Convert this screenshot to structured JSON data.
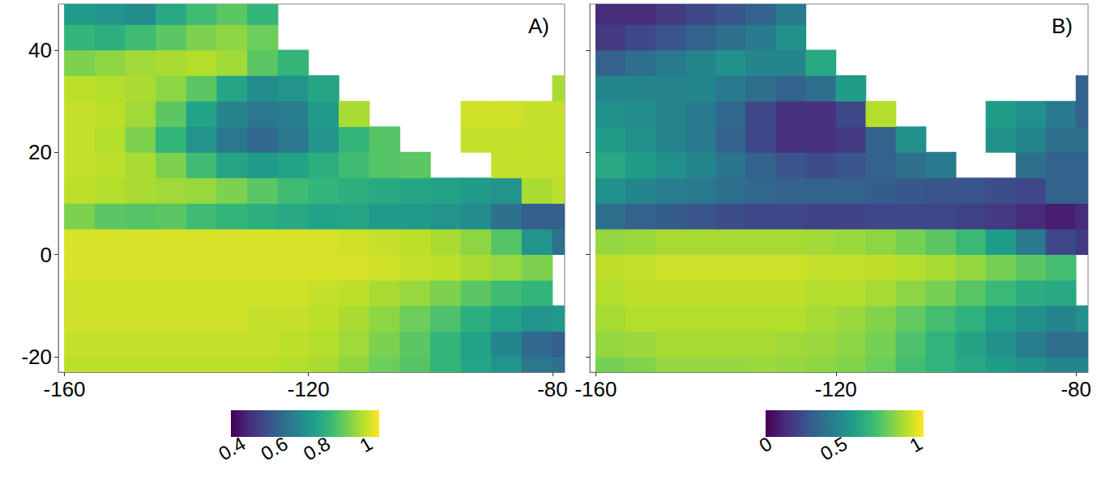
{
  "chart_data": [
    {
      "type": "heatmap",
      "title": "A)",
      "grid": false,
      "x": [
        -157.5,
        -152.5,
        -147.5,
        -142.5,
        -137.5,
        -132.5,
        -127.5,
        -122.5,
        -117.5,
        -112.5,
        -107.5,
        -102.5,
        -97.5,
        -92.5,
        -87.5,
        -82.5,
        -77.5
      ],
      "y": [
        -22.5,
        -17.5,
        -12.5,
        -7.5,
        -2.5,
        2.5,
        7.5,
        12.5,
        17.5,
        22.5,
        27.5,
        32.5,
        37.5,
        42.5,
        47.5
      ],
      "cells": [
        [
          0.97,
          0.97,
          0.97,
          0.97,
          0.97,
          0.97,
          0.97,
          0.96,
          0.95,
          0.92,
          0.88,
          0.85,
          0.8,
          0.75,
          0.7,
          0.62,
          0.6
        ],
        [
          0.98,
          0.98,
          0.98,
          0.98,
          0.98,
          0.98,
          0.98,
          0.97,
          0.96,
          0.94,
          0.9,
          0.86,
          0.8,
          0.74,
          0.66,
          0.58,
          0.55
        ],
        [
          0.99,
          0.99,
          0.99,
          0.99,
          0.99,
          0.99,
          0.98,
          0.98,
          0.97,
          0.95,
          0.92,
          0.88,
          0.84,
          0.78,
          0.74,
          0.7,
          0.72
        ],
        [
          0.99,
          0.99,
          0.99,
          0.99,
          0.99,
          0.99,
          0.99,
          0.99,
          0.98,
          0.97,
          0.95,
          0.93,
          0.9,
          0.86,
          0.82,
          0.8,
          null
        ],
        [
          1,
          1,
          1,
          1,
          1,
          1,
          1,
          1,
          1,
          1,
          0.99,
          0.98,
          0.97,
          0.95,
          0.93,
          0.9,
          null
        ],
        [
          1,
          1,
          1,
          1,
          1,
          1,
          1,
          1,
          1,
          0.99,
          0.98,
          0.97,
          0.95,
          0.92,
          0.85,
          0.7,
          0.6
        ],
        [
          0.9,
          0.86,
          0.85,
          0.86,
          0.82,
          0.8,
          0.78,
          0.76,
          0.74,
          0.75,
          0.72,
          0.72,
          0.7,
          0.68,
          0.6,
          0.55,
          0.55
        ],
        [
          0.97,
          0.96,
          0.95,
          0.94,
          0.93,
          0.9,
          0.86,
          0.82,
          0.8,
          0.78,
          0.76,
          0.75,
          0.74,
          0.72,
          0.7,
          0.95,
          0.97
        ],
        [
          0.98,
          0.97,
          0.95,
          0.9,
          0.82,
          0.75,
          0.72,
          0.74,
          0.78,
          0.82,
          0.85,
          0.86,
          null,
          null,
          0.98,
          0.98,
          0.98
        ],
        [
          0.98,
          0.96,
          0.9,
          0.8,
          0.7,
          0.62,
          0.58,
          0.62,
          0.7,
          0.8,
          0.85,
          null,
          null,
          0.98,
          0.98,
          0.98,
          0.98
        ],
        [
          0.98,
          0.97,
          0.94,
          0.86,
          0.74,
          0.66,
          0.62,
          0.64,
          0.72,
          0.95,
          null,
          null,
          null,
          0.99,
          0.99,
          0.98,
          0.98
        ],
        [
          0.97,
          0.96,
          0.95,
          0.92,
          0.86,
          0.75,
          0.68,
          0.7,
          0.75,
          null,
          null,
          null,
          null,
          null,
          null,
          null,
          0.95
        ],
        [
          0.9,
          0.92,
          0.94,
          0.95,
          0.96,
          0.94,
          0.86,
          0.8,
          null,
          null,
          null,
          null,
          null,
          null,
          null,
          null,
          null
        ],
        [
          0.8,
          0.78,
          0.82,
          0.86,
          0.9,
          0.92,
          0.88,
          null,
          null,
          null,
          null,
          null,
          null,
          null,
          null,
          null,
          null
        ],
        [
          0.72,
          0.7,
          0.68,
          0.76,
          0.82,
          0.86,
          0.8,
          null,
          null,
          null,
          null,
          null,
          null,
          null,
          null,
          null,
          null
        ]
      ],
      "xlim": [
        -161,
        -78
      ],
      "ylim": [
        -23,
        49
      ],
      "xticks": [
        -160,
        -120,
        -80
      ],
      "yticks": [
        -20,
        0,
        20,
        40
      ],
      "color_range": [
        0.34,
        1.04
      ],
      "color_ticks": [
        0.4,
        0.6,
        0.8,
        1
      ]
    },
    {
      "type": "heatmap",
      "title": "B)",
      "grid": false,
      "tick_labels": "x",
      "x": [
        -157.5,
        -152.5,
        -147.5,
        -142.5,
        -137.5,
        -132.5,
        -127.5,
        -122.5,
        -117.5,
        -112.5,
        -107.5,
        -102.5,
        -97.5,
        -92.5,
        -87.5,
        -82.5,
        -77.5
      ],
      "y": [
        -22.5,
        -17.5,
        -12.5,
        -7.5,
        -2.5,
        2.5,
        7.5,
        12.5,
        17.5,
        22.5,
        27.5,
        32.5,
        37.5,
        42.5,
        47.5
      ],
      "cells": [
        [
          0.8,
          0.82,
          0.85,
          0.85,
          0.85,
          0.86,
          0.85,
          0.84,
          0.82,
          0.78,
          0.7,
          0.65,
          0.6,
          0.55,
          0.5,
          0.45,
          0.45
        ],
        [
          0.85,
          0.86,
          0.88,
          0.88,
          0.88,
          0.88,
          0.87,
          0.86,
          0.84,
          0.8,
          0.72,
          0.65,
          0.58,
          0.5,
          0.42,
          0.35,
          0.35
        ],
        [
          0.88,
          0.9,
          0.9,
          0.9,
          0.9,
          0.9,
          0.9,
          0.88,
          0.86,
          0.82,
          0.76,
          0.7,
          0.64,
          0.56,
          0.5,
          0.45,
          0.5
        ],
        [
          0.9,
          0.92,
          0.92,
          0.92,
          0.92,
          0.92,
          0.92,
          0.9,
          0.9,
          0.88,
          0.84,
          0.8,
          0.74,
          0.68,
          0.62,
          0.6,
          null
        ],
        [
          0.92,
          0.93,
          0.94,
          0.94,
          0.94,
          0.94,
          0.94,
          0.93,
          0.93,
          0.92,
          0.9,
          0.88,
          0.85,
          0.8,
          0.75,
          0.7,
          null
        ],
        [
          0.85,
          0.86,
          0.88,
          0.88,
          0.88,
          0.88,
          0.88,
          0.87,
          0.86,
          0.84,
          0.8,
          0.75,
          0.68,
          0.55,
          0.4,
          0.2,
          0.15
        ],
        [
          0.35,
          0.3,
          0.28,
          0.25,
          0.22,
          0.2,
          0.2,
          0.18,
          0.18,
          0.2,
          0.2,
          0.2,
          0.18,
          0.15,
          0.1,
          0.06,
          0.1
        ],
        [
          0.5,
          0.45,
          0.42,
          0.4,
          0.35,
          0.32,
          0.3,
          0.3,
          0.3,
          0.28,
          0.26,
          0.25,
          0.25,
          0.22,
          0.2,
          0.3,
          0.3
        ],
        [
          0.6,
          0.55,
          0.5,
          0.45,
          0.38,
          0.3,
          0.25,
          0.22,
          0.25,
          0.3,
          0.35,
          0.4,
          null,
          null,
          0.35,
          0.3,
          0.3
        ],
        [
          0.55,
          0.5,
          0.45,
          0.4,
          0.3,
          0.2,
          0.12,
          0.12,
          0.15,
          0.3,
          0.5,
          null,
          null,
          0.5,
          0.45,
          0.35,
          0.35
        ],
        [
          0.5,
          0.48,
          0.45,
          0.4,
          0.32,
          0.2,
          0.12,
          0.12,
          0.2,
          0.9,
          null,
          null,
          null,
          0.55,
          0.5,
          0.4,
          0.3
        ],
        [
          0.45,
          0.45,
          0.45,
          0.45,
          0.4,
          0.35,
          0.3,
          0.35,
          0.55,
          null,
          null,
          null,
          null,
          null,
          null,
          null,
          0.3
        ],
        [
          0.3,
          0.35,
          0.4,
          0.45,
          0.5,
          0.45,
          0.45,
          0.6,
          null,
          null,
          null,
          null,
          null,
          null,
          null,
          null,
          null
        ],
        [
          0.15,
          0.2,
          0.25,
          0.3,
          0.35,
          0.4,
          0.5,
          null,
          null,
          null,
          null,
          null,
          null,
          null,
          null,
          null,
          null
        ],
        [
          0.1,
          0.1,
          0.15,
          0.2,
          0.25,
          0.3,
          0.4,
          null,
          null,
          null,
          null,
          null,
          null,
          null,
          null,
          null,
          null
        ]
      ],
      "xlim": [
        -161,
        -78
      ],
      "ylim": [
        -23,
        49
      ],
      "xticks": [
        -160,
        -120,
        -80
      ],
      "yticks": [
        -20,
        0,
        20,
        40
      ],
      "color_range": [
        -0.03,
        1.02
      ],
      "color_ticks": [
        0,
        0.5,
        1
      ]
    }
  ]
}
